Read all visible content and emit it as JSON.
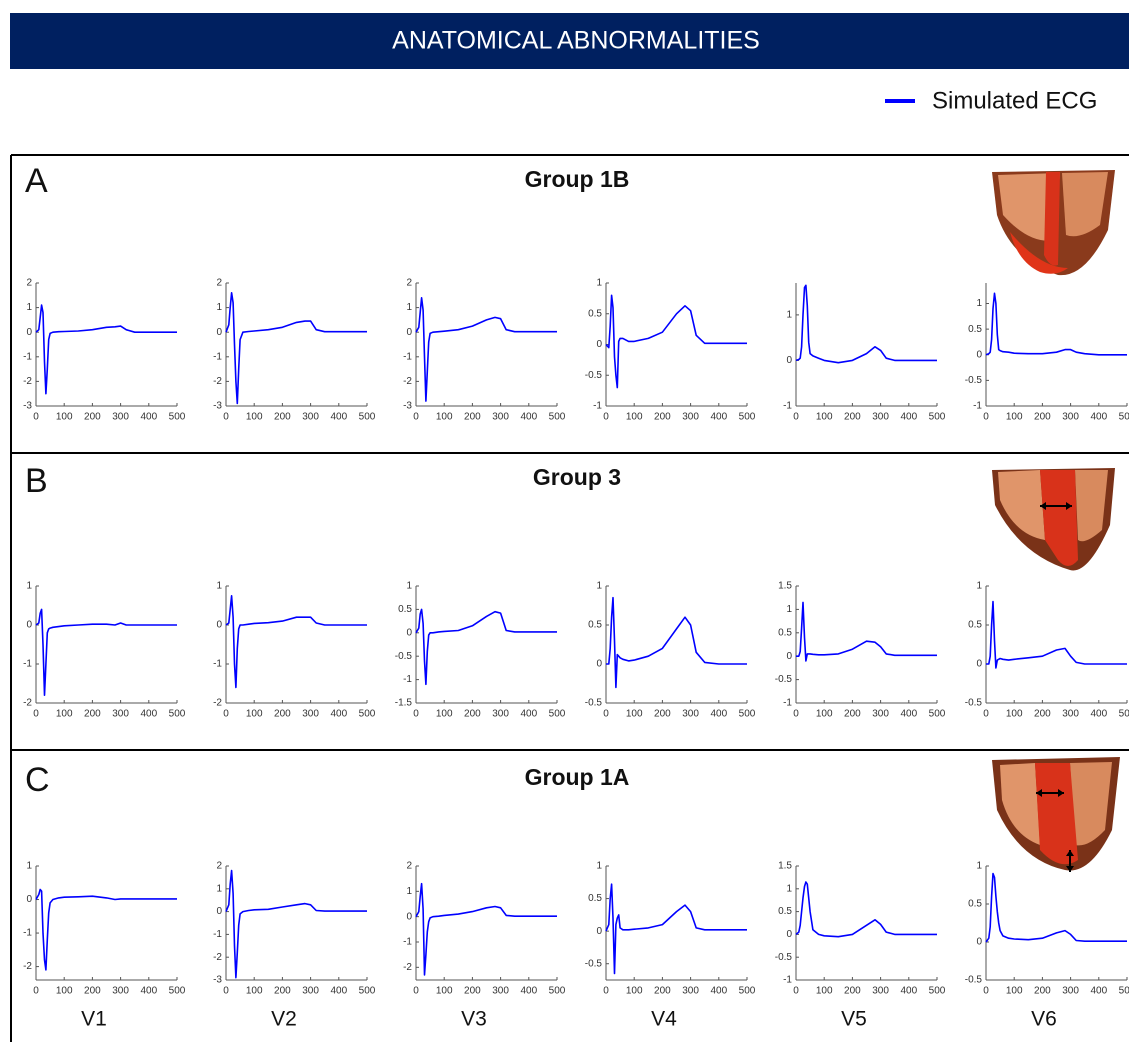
{
  "header": {
    "title": "ANATOMICAL ABNORMALITIES"
  },
  "legend": {
    "label": "Simulated ECG"
  },
  "panels": [
    {
      "letter": "A",
      "title": "Group 1B"
    },
    {
      "letter": "B",
      "title": "Group 3"
    },
    {
      "letter": "C",
      "title": "Group 1A"
    }
  ],
  "leads": [
    "V1",
    "V2",
    "V3",
    "V4",
    "V5",
    "V6"
  ],
  "chart_data": [
    {
      "type": "line",
      "x": [
        0,
        10,
        15,
        20,
        25,
        30,
        35,
        40,
        45,
        50,
        60,
        80,
        100,
        150,
        200,
        250,
        280,
        300,
        320,
        350,
        400,
        500
      ],
      "values": [
        0,
        0.1,
        0.6,
        1.1,
        0.8,
        -1.2,
        -2.5,
        -1.5,
        -0.3,
        -0.05,
        0,
        0.02,
        0.03,
        0.05,
        0.1,
        0.2,
        0.22,
        0.25,
        0.1,
        0,
        0,
        0
      ],
      "color": "#0000ff",
      "xlim": [
        0,
        500
      ],
      "xticks": [
        0,
        100,
        200,
        300,
        400,
        500
      ],
      "ylim": [
        -3,
        2
      ],
      "yticks": [
        -3,
        -2,
        -1,
        0,
        1,
        2
      ]
    },
    {
      "type": "line",
      "x": [
        0,
        10,
        15,
        20,
        25,
        30,
        35,
        40,
        45,
        50,
        60,
        80,
        100,
        150,
        200,
        250,
        280,
        300,
        320,
        350,
        400,
        500
      ],
      "values": [
        0,
        0.3,
        1.0,
        1.6,
        1.2,
        -0.5,
        -2.0,
        -2.9,
        -1.5,
        -0.3,
        0,
        0.03,
        0.05,
        0.1,
        0.2,
        0.4,
        0.45,
        0.45,
        0.1,
        0.02,
        0.02,
        0.02
      ],
      "color": "#0000ff",
      "xlim": [
        0,
        500
      ],
      "xticks": [
        0,
        100,
        200,
        300,
        400,
        500
      ],
      "ylim": [
        -3,
        2
      ],
      "yticks": [
        -3,
        -2,
        -1,
        0,
        1,
        2
      ]
    },
    {
      "type": "line",
      "x": [
        0,
        10,
        15,
        20,
        25,
        30,
        35,
        40,
        45,
        50,
        60,
        80,
        100,
        150,
        200,
        250,
        280,
        300,
        320,
        350,
        400,
        500
      ],
      "values": [
        0,
        0.2,
        0.8,
        1.4,
        0.9,
        -1.0,
        -2.8,
        -1.6,
        -0.4,
        -0.05,
        0,
        0.02,
        0.04,
        0.1,
        0.25,
        0.5,
        0.6,
        0.55,
        0.1,
        0.02,
        0.02,
        0.02
      ],
      "color": "#0000ff",
      "xlim": [
        0,
        500
      ],
      "xticks": [
        0,
        100,
        200,
        300,
        400,
        500
      ],
      "ylim": [
        -3,
        2
      ],
      "yticks": [
        -3,
        -2,
        -1,
        0,
        1,
        2
      ]
    },
    {
      "type": "line",
      "x": [
        0,
        10,
        15,
        20,
        25,
        30,
        35,
        40,
        45,
        50,
        60,
        80,
        100,
        150,
        200,
        250,
        280,
        300,
        320,
        350,
        400,
        500
      ],
      "values": [
        0,
        -0.05,
        0.3,
        0.8,
        0.6,
        -0.2,
        -0.5,
        -0.7,
        0.05,
        0.1,
        0.1,
        0.05,
        0.05,
        0.1,
        0.2,
        0.5,
        0.63,
        0.55,
        0.15,
        0.02,
        0.02,
        0.02
      ],
      "color": "#0000ff",
      "xlim": [
        0,
        500
      ],
      "xticks": [
        0,
        100,
        200,
        300,
        400,
        500
      ],
      "ylim": [
        -1,
        1
      ],
      "yticks": [
        -1,
        -0.5,
        0,
        0.5,
        1
      ]
    },
    {
      "type": "line",
      "x": [
        0,
        10,
        15,
        20,
        25,
        30,
        35,
        40,
        45,
        50,
        60,
        80,
        100,
        150,
        200,
        250,
        280,
        300,
        320,
        350,
        400,
        500
      ],
      "values": [
        0,
        0.02,
        0.05,
        0.3,
        1.0,
        1.6,
        1.65,
        1.2,
        0.4,
        0.15,
        0.1,
        0.05,
        0,
        -0.05,
        0,
        0.15,
        0.3,
        0.22,
        0.05,
        0,
        0,
        0
      ],
      "color": "#0000ff",
      "xlim": [
        0,
        500
      ],
      "xticks": [
        0,
        100,
        200,
        300,
        400,
        500
      ],
      "ylim": [
        -1,
        1.7
      ],
      "yticks": [
        -1,
        0,
        1
      ]
    },
    {
      "type": "line",
      "x": [
        0,
        10,
        15,
        20,
        25,
        30,
        35,
        40,
        45,
        50,
        60,
        80,
        100,
        150,
        200,
        250,
        280,
        300,
        320,
        350,
        400,
        500
      ],
      "values": [
        0,
        0.02,
        0.05,
        0.3,
        0.9,
        1.2,
        1.0,
        0.4,
        0.1,
        0.08,
        0.06,
        0.05,
        0.03,
        0.02,
        0.02,
        0.05,
        0.1,
        0.1,
        0.05,
        0.02,
        0,
        0
      ],
      "color": "#0000ff",
      "xlim": [
        0,
        500
      ],
      "xticks": [
        0,
        100,
        200,
        300,
        400,
        500
      ],
      "ylim": [
        -1,
        1.4
      ],
      "yticks": [
        -1,
        -0.5,
        0,
        0.5,
        1
      ]
    },
    {
      "type": "line",
      "x": [
        0,
        10,
        15,
        20,
        25,
        30,
        35,
        40,
        45,
        50,
        60,
        80,
        100,
        150,
        200,
        250,
        280,
        300,
        320,
        350,
        400,
        500
      ],
      "values": [
        0,
        0.05,
        0.3,
        0.4,
        -0.5,
        -1.8,
        -1.0,
        -0.2,
        -0.1,
        -0.08,
        -0.06,
        -0.04,
        -0.02,
        0,
        0.02,
        0.02,
        0,
        0.05,
        0,
        0,
        0,
        0
      ],
      "color": "#0000ff",
      "xlim": [
        0,
        500
      ],
      "xticks": [
        0,
        100,
        200,
        300,
        400,
        500
      ],
      "ylim": [
        -2,
        1
      ],
      "yticks": [
        -2,
        -1,
        0,
        1
      ]
    },
    {
      "type": "line",
      "x": [
        0,
        10,
        15,
        20,
        25,
        30,
        35,
        40,
        45,
        50,
        60,
        80,
        100,
        150,
        200,
        250,
        280,
        300,
        320,
        350,
        400,
        500
      ],
      "values": [
        0,
        0.05,
        0.4,
        0.75,
        0.2,
        -1.0,
        -1.6,
        -0.6,
        -0.1,
        0,
        0,
        0.02,
        0.04,
        0.06,
        0.1,
        0.2,
        0.2,
        0.2,
        0.05,
        0,
        0,
        0
      ],
      "color": "#0000ff",
      "xlim": [
        0,
        500
      ],
      "xticks": [
        0,
        100,
        200,
        300,
        400,
        500
      ],
      "ylim": [
        -2,
        1
      ],
      "yticks": [
        -2,
        -1,
        0,
        1
      ]
    },
    {
      "type": "line",
      "x": [
        0,
        10,
        15,
        20,
        25,
        30,
        35,
        40,
        45,
        50,
        60,
        80,
        100,
        150,
        200,
        250,
        280,
        300,
        320,
        350,
        400,
        500
      ],
      "values": [
        0,
        0.1,
        0.4,
        0.5,
        0.2,
        -0.6,
        -1.1,
        -0.4,
        -0.05,
        0,
        0,
        0.02,
        0.03,
        0.05,
        0.15,
        0.35,
        0.45,
        0.42,
        0.05,
        0.02,
        0.02,
        0.02
      ],
      "color": "#0000ff",
      "xlim": [
        0,
        500
      ],
      "xticks": [
        0,
        100,
        200,
        300,
        400,
        500
      ],
      "ylim": [
        -1.5,
        1
      ],
      "yticks": [
        -1.5,
        -1,
        -0.5,
        0,
        0.5,
        1
      ]
    },
    {
      "type": "line",
      "x": [
        0,
        10,
        15,
        20,
        25,
        30,
        35,
        40,
        45,
        50,
        60,
        80,
        100,
        150,
        200,
        250,
        280,
        300,
        320,
        350,
        400,
        500
      ],
      "values": [
        0,
        0,
        0.2,
        0.6,
        0.85,
        0.3,
        -0.3,
        0.12,
        0.1,
        0.08,
        0.06,
        0.04,
        0.05,
        0.1,
        0.2,
        0.45,
        0.6,
        0.5,
        0.15,
        0.02,
        0,
        0
      ],
      "color": "#0000ff",
      "xlim": [
        0,
        500
      ],
      "xticks": [
        0,
        100,
        200,
        300,
        400,
        500
      ],
      "ylim": [
        -0.5,
        1
      ],
      "yticks": [
        -0.5,
        0,
        0.5,
        1
      ]
    },
    {
      "type": "line",
      "x": [
        0,
        10,
        15,
        20,
        25,
        30,
        35,
        40,
        45,
        50,
        60,
        80,
        100,
        150,
        200,
        250,
        280,
        300,
        320,
        350,
        400,
        500
      ],
      "values": [
        0,
        0,
        0.1,
        0.6,
        1.15,
        0.4,
        -0.1,
        0.05,
        0.05,
        0.05,
        0.04,
        0.03,
        0.03,
        0.05,
        0.15,
        0.32,
        0.3,
        0.2,
        0.05,
        0.02,
        0.02,
        0.02
      ],
      "color": "#0000ff",
      "xlim": [
        0,
        500
      ],
      "xticks": [
        0,
        100,
        200,
        300,
        400,
        500
      ],
      "ylim": [
        -1,
        1.5
      ],
      "yticks": [
        -1,
        -0.5,
        0,
        0.5,
        1,
        1.5
      ]
    },
    {
      "type": "line",
      "x": [
        0,
        10,
        15,
        20,
        25,
        30,
        35,
        40,
        45,
        50,
        60,
        80,
        100,
        150,
        200,
        250,
        280,
        300,
        320,
        350,
        400,
        500
      ],
      "values": [
        0,
        0,
        0.1,
        0.5,
        0.8,
        0.3,
        -0.05,
        0.05,
        0.06,
        0.07,
        0.06,
        0.05,
        0.06,
        0.08,
        0.1,
        0.18,
        0.2,
        0.1,
        0.02,
        0,
        0,
        0
      ],
      "color": "#0000ff",
      "xlim": [
        0,
        500
      ],
      "xticks": [
        0,
        100,
        200,
        300,
        400,
        500
      ],
      "ylim": [
        -0.5,
        1
      ],
      "yticks": [
        -0.5,
        0,
        0.5,
        1
      ]
    },
    {
      "type": "line",
      "x": [
        0,
        10,
        15,
        20,
        25,
        30,
        35,
        40,
        45,
        50,
        60,
        80,
        100,
        150,
        200,
        250,
        280,
        300,
        320,
        350,
        400,
        500
      ],
      "values": [
        0,
        0.15,
        0.3,
        0.25,
        -1.0,
        -1.8,
        -2.1,
        -1.2,
        -0.4,
        -0.1,
        0,
        0.05,
        0.07,
        0.08,
        0.1,
        0.05,
        0,
        0.02,
        0.02,
        0.02,
        0.02,
        0.02
      ],
      "color": "#0000ff",
      "xlim": [
        0,
        500
      ],
      "xticks": [
        0,
        100,
        200,
        300,
        400,
        500
      ],
      "ylim": [
        -2.4,
        1
      ],
      "yticks": [
        -2,
        -1,
        0,
        1
      ]
    },
    {
      "type": "line",
      "x": [
        0,
        10,
        15,
        20,
        25,
        30,
        35,
        40,
        45,
        50,
        60,
        80,
        100,
        150,
        200,
        250,
        280,
        300,
        320,
        350,
        400,
        500
      ],
      "values": [
        0,
        0.3,
        1.2,
        1.8,
        0.8,
        -1.5,
        -2.9,
        -1.8,
        -0.6,
        -0.1,
        0,
        0.05,
        0.08,
        0.1,
        0.2,
        0.3,
        0.35,
        0.3,
        0.05,
        0.02,
        0.02,
        0.02
      ],
      "color": "#0000ff",
      "xlim": [
        0,
        500
      ],
      "xticks": [
        0,
        100,
        200,
        300,
        400,
        500
      ],
      "ylim": [
        -3,
        2
      ],
      "yticks": [
        -3,
        -2,
        -1,
        0,
        1,
        2
      ]
    },
    {
      "type": "line",
      "x": [
        0,
        10,
        15,
        20,
        25,
        30,
        35,
        40,
        45,
        50,
        60,
        80,
        100,
        150,
        200,
        250,
        280,
        300,
        320,
        350,
        400,
        500
      ],
      "values": [
        0,
        0.2,
        0.8,
        1.3,
        0.3,
        -2.3,
        -1.5,
        -0.6,
        -0.2,
        -0.05,
        0,
        0.02,
        0.05,
        0.1,
        0.2,
        0.35,
        0.4,
        0.35,
        0.05,
        0.02,
        0.02,
        0.02
      ],
      "color": "#0000ff",
      "xlim": [
        0,
        500
      ],
      "xticks": [
        0,
        100,
        200,
        300,
        400,
        500
      ],
      "ylim": [
        -2.5,
        2
      ],
      "yticks": [
        -2,
        -1,
        0,
        1,
        2
      ]
    },
    {
      "type": "line",
      "x": [
        0,
        10,
        15,
        20,
        25,
        30,
        35,
        40,
        45,
        50,
        60,
        80,
        100,
        150,
        200,
        250,
        280,
        300,
        320,
        350,
        400,
        500
      ],
      "values": [
        0,
        0.1,
        0.5,
        0.72,
        0.2,
        -0.65,
        0.1,
        0.2,
        0.25,
        0.05,
        0.02,
        0.02,
        0.03,
        0.05,
        0.1,
        0.3,
        0.4,
        0.3,
        0.05,
        0.02,
        0.02,
        0.02
      ],
      "color": "#0000ff",
      "xlim": [
        0,
        500
      ],
      "xticks": [
        0,
        100,
        200,
        300,
        400,
        500
      ],
      "ylim": [
        -0.75,
        1
      ],
      "yticks": [
        -0.5,
        0,
        0.5,
        1
      ]
    },
    {
      "type": "line",
      "x": [
        0,
        10,
        15,
        20,
        25,
        30,
        35,
        40,
        45,
        50,
        60,
        80,
        100,
        150,
        200,
        250,
        280,
        300,
        320,
        350,
        400,
        500
      ],
      "values": [
        0,
        0.05,
        0.2,
        0.5,
        0.8,
        1.05,
        1.15,
        1.1,
        0.8,
        0.5,
        0.1,
        0,
        -0.03,
        -0.05,
        0,
        0.2,
        0.32,
        0.22,
        0.05,
        0,
        0,
        0
      ],
      "color": "#0000ff",
      "xlim": [
        0,
        500
      ],
      "xticks": [
        0,
        100,
        200,
        300,
        400,
        500
      ],
      "ylim": [
        -1,
        1.5
      ],
      "yticks": [
        -1,
        -0.5,
        0,
        0.5,
        1,
        1.5
      ]
    },
    {
      "type": "line",
      "x": [
        0,
        10,
        15,
        20,
        25,
        30,
        35,
        40,
        45,
        50,
        60,
        80,
        100,
        150,
        200,
        250,
        280,
        300,
        320,
        350,
        400,
        500
      ],
      "values": [
        0,
        0.05,
        0.2,
        0.6,
        0.9,
        0.85,
        0.6,
        0.4,
        0.25,
        0.15,
        0.08,
        0.05,
        0.04,
        0.03,
        0.05,
        0.12,
        0.15,
        0.1,
        0.02,
        0.01,
        0.01,
        0.01
      ],
      "color": "#0000ff",
      "xlim": [
        0,
        500
      ],
      "xticks": [
        0,
        100,
        200,
        300,
        400,
        500
      ],
      "ylim": [
        -0.5,
        1
      ],
      "yticks": [
        -0.5,
        0,
        0.5,
        1
      ]
    }
  ]
}
